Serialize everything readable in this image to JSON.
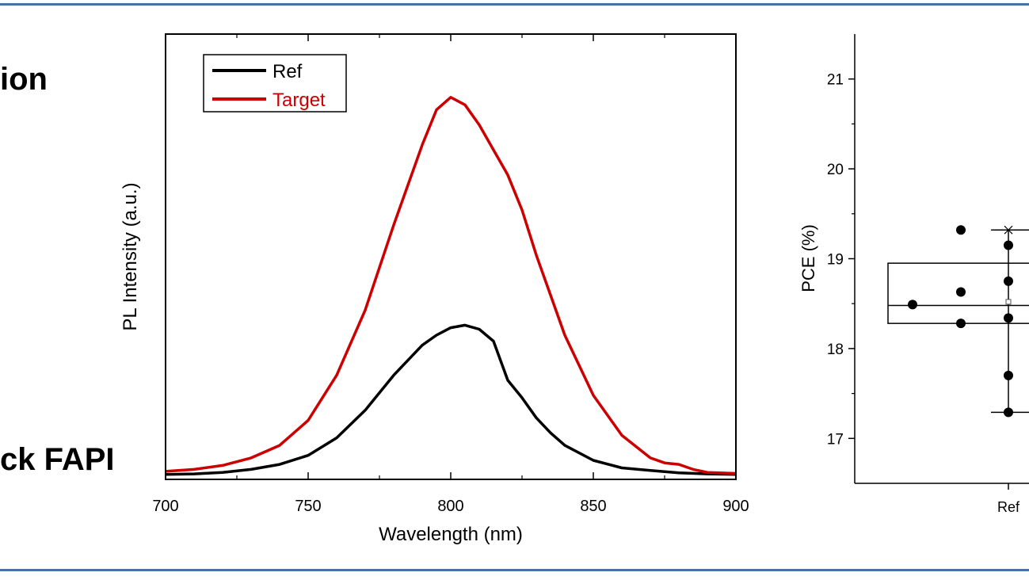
{
  "slide": {
    "left_text_top": "ion",
    "left_text_bottom": "ck FAPI",
    "border_color": "#4a6fa5"
  },
  "chart_data": [
    {
      "type": "line",
      "xlabel": "Wavelength (nm)",
      "ylabel": "PL Intensity (a.u.)",
      "xlim": [
        700,
        900
      ],
      "xticks": [
        700,
        750,
        800,
        850,
        900
      ],
      "ylim": [
        0,
        1.0
      ],
      "yticks_labeled": false,
      "legend_position": "top-left",
      "series": [
        {
          "name": "Ref",
          "color": "#000000",
          "x": [
            700,
            710,
            720,
            730,
            740,
            750,
            760,
            770,
            780,
            790,
            795,
            800,
            805,
            810,
            815,
            820,
            825,
            830,
            835,
            840,
            850,
            860,
            870,
            880,
            890,
            900
          ],
          "y": [
            0.002,
            0.003,
            0.006,
            0.012,
            0.022,
            0.04,
            0.075,
            0.13,
            0.2,
            0.26,
            0.28,
            0.295,
            0.3,
            0.292,
            0.268,
            0.19,
            0.155,
            0.115,
            0.085,
            0.06,
            0.03,
            0.015,
            0.01,
            0.005,
            0.003,
            0.002
          ]
        },
        {
          "name": "Target",
          "color": "#cc0000",
          "x": [
            700,
            710,
            720,
            730,
            740,
            750,
            760,
            770,
            780,
            790,
            795,
            800,
            805,
            810,
            815,
            820,
            825,
            830,
            840,
            850,
            860,
            870,
            875,
            880,
            885,
            890,
            900
          ],
          "y": [
            0.008,
            0.012,
            0.02,
            0.035,
            0.06,
            0.11,
            0.2,
            0.33,
            0.5,
            0.66,
            0.73,
            0.755,
            0.74,
            0.7,
            0.65,
            0.6,
            0.53,
            0.44,
            0.28,
            0.16,
            0.08,
            0.035,
            0.025,
            0.022,
            0.012,
            0.006,
            0.004
          ]
        }
      ]
    },
    {
      "type": "box",
      "ylabel": "PCE (%)",
      "ylim": [
        16.5,
        21.5
      ],
      "yticks": [
        17,
        18,
        19,
        20,
        21
      ],
      "categories": [
        "Ref"
      ],
      "box": {
        "q1": 18.28,
        "median": 18.48,
        "q3": 18.95,
        "mean": 18.52,
        "min": 17.29,
        "max": 19.32
      },
      "points": [
        {
          "x_offset": -2,
          "y": 18.49
        },
        {
          "x_offset": -1,
          "y": 19.32
        },
        {
          "x_offset": -1,
          "y": 18.63
        },
        {
          "x_offset": -1,
          "y": 18.28
        },
        {
          "x_offset": 0,
          "y": 19.15
        },
        {
          "x_offset": 0,
          "y": 18.75
        },
        {
          "x_offset": 0,
          "y": 18.34
        },
        {
          "x_offset": 0,
          "y": 17.7
        },
        {
          "x_offset": 0,
          "y": 17.29
        }
      ]
    }
  ]
}
